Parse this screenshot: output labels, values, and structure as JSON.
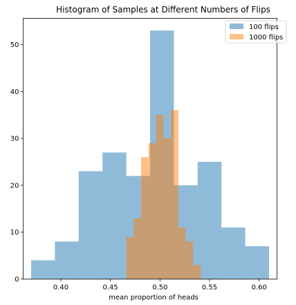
{
  "chart_data": {
    "type": "bar",
    "title": "Histogram of Samples at Different Numbers of Flips",
    "xlabel": "mean proportion of heads",
    "ylabel": "",
    "xlim": [
      0.362,
      0.618
    ],
    "ylim": [
      0,
      55.6
    ],
    "xticks": [
      "0.40",
      "0.45",
      "0.50",
      "0.55",
      "0.60"
    ],
    "xtick_values": [
      0.4,
      0.45,
      0.5,
      0.55,
      0.6
    ],
    "yticks": [
      "0",
      "10",
      "20",
      "30",
      "40",
      "50"
    ],
    "ytick_values": [
      0,
      10,
      20,
      30,
      40,
      50
    ],
    "grid": false,
    "legend_position": "top-right",
    "series": [
      {
        "name": "100 flips",
        "color": "#1f77b4",
        "opacity": 0.5,
        "bin_edges": [
          0.37,
          0.394,
          0.418,
          0.442,
          0.466,
          0.49,
          0.514,
          0.538,
          0.562,
          0.586,
          0.61
        ],
        "counts": [
          4,
          8,
          23,
          27,
          22,
          53,
          20,
          25,
          11,
          7
        ]
      },
      {
        "name": "1000 flips",
        "color": "#ff7f0e",
        "opacity": 0.5,
        "bin_edges": [
          0.466,
          0.4735,
          0.481,
          0.4885,
          0.496,
          0.5035,
          0.511,
          0.5185,
          0.526,
          0.5335,
          0.541
        ],
        "counts": [
          9,
          13,
          26,
          29,
          35,
          30,
          36,
          11,
          8,
          3
        ]
      }
    ]
  }
}
